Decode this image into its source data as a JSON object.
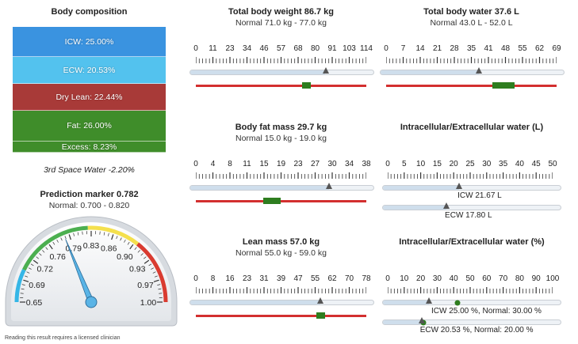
{
  "body_composition": {
    "title": "Body composition",
    "segments": [
      {
        "label": "ICW: 25.00%",
        "color": "#3a93e0"
      },
      {
        "label": "ECW: 20.53%",
        "color": "#53c2ee"
      },
      {
        "label": "Dry Lean: 22.44%",
        "color": "#a83a38"
      },
      {
        "label": "Fat: 26.00%",
        "color": "#3f8d2a"
      },
      {
        "label": "Excess: 8.23%",
        "color": "#3f8d2a"
      }
    ],
    "third_space": "3rd Space Water -2.20%"
  },
  "prediction": {
    "title": "Prediction marker 0.782",
    "normal": "Normal: 0.700 - 0.820",
    "value": 0.782,
    "min": 0.65,
    "max": 1.0,
    "ticks": [
      "0.65",
      "0.69",
      "0.72",
      "0.76",
      "0.79",
      "0.83",
      "0.86",
      "0.90",
      "0.93",
      "0.97",
      "1.00"
    ]
  },
  "footer_text": "Reading this result requires a licensed clinician",
  "panels": [
    {
      "id": "weight",
      "title": "Total body weight 86.7 kg",
      "normal": "Normal 71.0 kg - 77.0 kg",
      "ticks": [
        "0",
        "11",
        "23",
        "34",
        "46",
        "57",
        "68",
        "80",
        "91",
        "103",
        "114"
      ],
      "min": 0,
      "max": 114,
      "value": 86.7,
      "normal_range": [
        71.0,
        77.0
      ]
    },
    {
      "id": "water",
      "title": "Total body water 37.6 L",
      "normal": "Normal 43.0 L - 52.0 L",
      "ticks": [
        "0",
        "7",
        "14",
        "21",
        "28",
        "35",
        "41",
        "48",
        "55",
        "62",
        "69"
      ],
      "min": 0,
      "max": 69,
      "value": 37.6,
      "normal_range": [
        43.0,
        52.0
      ]
    },
    {
      "id": "fat",
      "title": "Body fat mass 29.7 kg",
      "normal": "Normal 15.0 kg - 19.0 kg",
      "ticks": [
        "0",
        "4",
        "8",
        "11",
        "15",
        "19",
        "23",
        "27",
        "30",
        "34",
        "38"
      ],
      "min": 0,
      "max": 38,
      "value": 29.7,
      "normal_range": [
        15.0,
        19.0
      ]
    },
    {
      "id": "lean",
      "title": "Lean mass 57.0 kg",
      "normal": "Normal 55.0 kg - 59.0 kg",
      "ticks": [
        "0",
        "8",
        "16",
        "23",
        "31",
        "39",
        "47",
        "55",
        "62",
        "70",
        "78"
      ],
      "min": 0,
      "max": 78,
      "value": 57.0,
      "normal_range": [
        55.0,
        59.0
      ]
    }
  ],
  "icw_ecw_l": {
    "title": "Intracellular/Extracellular water (L)",
    "ticks": [
      "0",
      "5",
      "10",
      "15",
      "20",
      "25",
      "30",
      "35",
      "40",
      "45",
      "50"
    ],
    "min": 0,
    "max": 50,
    "icw_value": 21.67,
    "ecw_value": 17.8,
    "icw_label": "ICW 21.67 L",
    "ecw_label": "ECW 17.80 L"
  },
  "icw_ecw_pct": {
    "title": "Intracellular/Extracellular water (%)",
    "ticks": [
      "0",
      "10",
      "20",
      "30",
      "40",
      "50",
      "60",
      "70",
      "80",
      "90",
      "100"
    ],
    "min": 0,
    "max": 100,
    "icw_value": 25.0,
    "icw_normal": 30.0,
    "ecw_value": 20.53,
    "ecw_normal": 20.0,
    "icw_label": "ICW 25.00 %, Normal: 30.00 %",
    "ecw_label": "ECW 20.53 %, Normal: 20.00 %"
  }
}
